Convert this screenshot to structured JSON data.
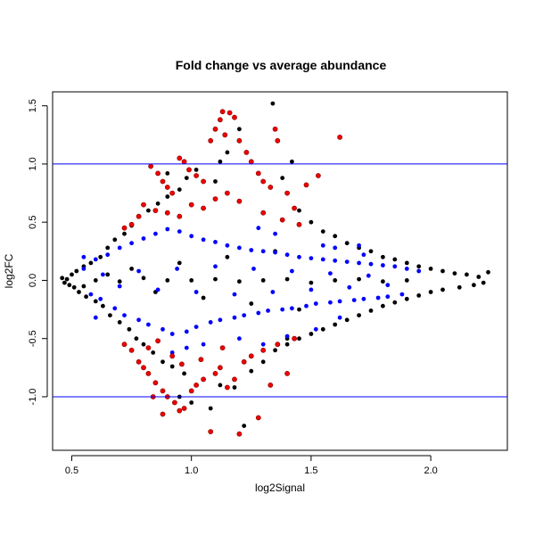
{
  "chart_data": {
    "type": "scatter",
    "title": "Fold change vs average abundance",
    "xlabel": "log2Signal",
    "ylabel": "log2FC",
    "xlim": [
      0.42,
      2.32
    ],
    "ylim": [
      -1.46,
      1.62
    ],
    "xticks": [
      {
        "value": 0.5,
        "label": "0.5"
      },
      {
        "value": 1.0,
        "label": "1.0"
      },
      {
        "value": 1.5,
        "label": "1.5"
      },
      {
        "value": 2.0,
        "label": "2.0"
      }
    ],
    "yticks": [
      {
        "value": -1.0,
        "label": "-1.0"
      },
      {
        "value": -0.5,
        "label": "-0.5"
      },
      {
        "value": 0.0,
        "label": "0.0"
      },
      {
        "value": 0.5,
        "label": "0.5"
      },
      {
        "value": 1.0,
        "label": "1.0"
      },
      {
        "value": 1.5,
        "label": "1.5"
      }
    ],
    "hlines": [
      {
        "y": 1.0,
        "color": "#0000ff"
      },
      {
        "y": -1.0,
        "color": "#0000ff"
      }
    ],
    "grid": false,
    "legend": "none",
    "colors": {
      "black": "#000000",
      "blue": "#0000ff",
      "red": "#ee0000",
      "red_outline": "#880000"
    },
    "series": [
      {
        "color": "black",
        "points": [
          [
            0.46,
            0.02
          ],
          [
            0.47,
            -0.02
          ],
          [
            0.48,
            0.01
          ],
          [
            0.49,
            -0.04
          ],
          [
            0.5,
            0.05
          ],
          [
            0.51,
            -0.06
          ],
          [
            0.52,
            0.08
          ],
          [
            0.53,
            -0.1
          ],
          [
            0.55,
            0.12
          ],
          [
            0.56,
            -0.14
          ],
          [
            0.58,
            0.15
          ],
          [
            0.6,
            -0.18
          ],
          [
            0.62,
            0.2
          ],
          [
            0.63,
            -0.22
          ],
          [
            0.65,
            0.28
          ],
          [
            0.66,
            -0.3
          ],
          [
            0.68,
            0.35
          ],
          [
            0.7,
            -0.36
          ],
          [
            0.72,
            0.4
          ],
          [
            0.74,
            -0.42
          ],
          [
            0.75,
            0.47
          ],
          [
            0.77,
            -0.5
          ],
          [
            0.78,
            0.55
          ],
          [
            0.8,
            -0.55
          ],
          [
            0.82,
            0.6
          ],
          [
            0.84,
            -0.62
          ],
          [
            0.86,
            0.66
          ],
          [
            0.88,
            -0.7
          ],
          [
            0.9,
            0.72
          ],
          [
            0.92,
            -0.74
          ],
          [
            0.95,
            0.78
          ],
          [
            0.97,
            -0.8
          ],
          [
            0.83,
            0.98
          ],
          [
            0.9,
            0.92
          ],
          [
            0.98,
            0.88
          ],
          [
            1.02,
            0.95
          ],
          [
            1.12,
            1.02
          ],
          [
            1.15,
            1.1
          ],
          [
            1.2,
            1.3
          ],
          [
            1.1,
            0.85
          ],
          [
            1.05,
            -0.85
          ],
          [
            1.12,
            -0.9
          ],
          [
            1.18,
            -0.92
          ],
          [
            1.25,
            -0.78
          ],
          [
            1.3,
            -0.7
          ],
          [
            1.22,
            -1.25
          ],
          [
            1.35,
            -0.6
          ],
          [
            1.4,
            -0.5
          ],
          [
            1.34,
            1.52
          ],
          [
            1.38,
            0.88
          ],
          [
            1.42,
            1.02
          ],
          [
            1.45,
            0.6
          ],
          [
            1.5,
            0.5
          ],
          [
            1.55,
            0.42
          ],
          [
            1.6,
            0.38
          ],
          [
            1.65,
            0.32
          ],
          [
            1.7,
            0.28
          ],
          [
            1.75,
            0.25
          ],
          [
            1.8,
            0.2
          ],
          [
            1.85,
            0.18
          ],
          [
            1.9,
            0.15
          ],
          [
            1.95,
            0.12
          ],
          [
            2.0,
            0.1
          ],
          [
            2.05,
            0.08
          ],
          [
            2.1,
            0.06
          ],
          [
            2.15,
            0.05
          ],
          [
            2.2,
            0.03
          ],
          [
            2.24,
            0.07
          ],
          [
            2.22,
            -0.02
          ],
          [
            2.18,
            -0.04
          ],
          [
            2.12,
            -0.06
          ],
          [
            2.05,
            -0.08
          ],
          [
            2.0,
            -0.1
          ],
          [
            1.95,
            -0.13
          ],
          [
            1.9,
            -0.16
          ],
          [
            1.85,
            -0.19
          ],
          [
            1.8,
            -0.22
          ],
          [
            1.75,
            -0.26
          ],
          [
            1.7,
            -0.3
          ],
          [
            1.65,
            -0.34
          ],
          [
            1.6,
            -0.38
          ],
          [
            1.55,
            -0.42
          ],
          [
            1.5,
            -0.46
          ],
          [
            1.45,
            -0.5
          ],
          [
            1.4,
            -0.55
          ],
          [
            1.0,
            -1.05
          ],
          [
            0.95,
            -1.0
          ],
          [
            1.08,
            -1.1
          ],
          [
            0.9,
            0.0
          ],
          [
            1.0,
            0.0
          ],
          [
            1.1,
            0.01
          ],
          [
            1.2,
            -0.01
          ],
          [
            1.3,
            0.0
          ],
          [
            1.4,
            0.01
          ],
          [
            0.8,
            0.02
          ],
          [
            0.7,
            -0.01
          ],
          [
            0.6,
            0.0
          ],
          [
            1.5,
            -0.02
          ],
          [
            1.6,
            0.0
          ],
          [
            1.7,
            0.01
          ],
          [
            1.8,
            -0.01
          ],
          [
            1.9,
            0.0
          ],
          [
            0.75,
            0.1
          ],
          [
            0.85,
            -0.1
          ],
          [
            0.95,
            0.15
          ],
          [
            1.05,
            -0.15
          ],
          [
            1.15,
            0.2
          ],
          [
            1.25,
            -0.2
          ],
          [
            1.35,
            0.25
          ],
          [
            1.45,
            -0.25
          ],
          [
            0.65,
            0.05
          ],
          [
            0.55,
            -0.05
          ]
        ]
      },
      {
        "color": "blue",
        "points": [
          [
            0.55,
            0.1
          ],
          [
            0.58,
            -0.12
          ],
          [
            0.6,
            0.18
          ],
          [
            0.62,
            -0.16
          ],
          [
            0.65,
            0.22
          ],
          [
            0.68,
            -0.24
          ],
          [
            0.7,
            0.28
          ],
          [
            0.72,
            -0.3
          ],
          [
            0.75,
            0.32
          ],
          [
            0.78,
            -0.34
          ],
          [
            0.8,
            0.36
          ],
          [
            0.82,
            -0.38
          ],
          [
            0.85,
            0.4
          ],
          [
            0.88,
            -0.42
          ],
          [
            0.9,
            0.44
          ],
          [
            0.92,
            -0.46
          ],
          [
            0.95,
            0.42
          ],
          [
            0.98,
            -0.44
          ],
          [
            1.0,
            0.38
          ],
          [
            1.02,
            -0.4
          ],
          [
            1.05,
            0.35
          ],
          [
            1.08,
            -0.36
          ],
          [
            1.1,
            0.33
          ],
          [
            1.12,
            -0.34
          ],
          [
            1.15,
            0.3
          ],
          [
            1.18,
            -0.32
          ],
          [
            1.2,
            0.28
          ],
          [
            1.22,
            -0.3
          ],
          [
            1.25,
            0.26
          ],
          [
            1.28,
            -0.28
          ],
          [
            1.3,
            0.25
          ],
          [
            1.32,
            -0.26
          ],
          [
            1.35,
            0.24
          ],
          [
            1.38,
            -0.25
          ],
          [
            1.4,
            0.22
          ],
          [
            1.42,
            -0.24
          ],
          [
            1.45,
            0.2
          ],
          [
            1.48,
            -0.22
          ],
          [
            1.5,
            0.19
          ],
          [
            1.52,
            -0.2
          ],
          [
            1.55,
            0.18
          ],
          [
            1.58,
            -0.19
          ],
          [
            1.6,
            0.17
          ],
          [
            1.62,
            -0.18
          ],
          [
            1.65,
            0.16
          ],
          [
            1.68,
            -0.17
          ],
          [
            1.7,
            0.15
          ],
          [
            1.72,
            -0.16
          ],
          [
            1.75,
            0.14
          ],
          [
            1.78,
            -0.15
          ],
          [
            1.8,
            0.13
          ],
          [
            1.82,
            -0.14
          ],
          [
            1.85,
            0.12
          ],
          [
            1.88,
            -0.12
          ],
          [
            1.9,
            0.1
          ],
          [
            1.95,
            0.08
          ],
          [
            0.63,
            0.05
          ],
          [
            0.7,
            -0.05
          ],
          [
            0.78,
            0.08
          ],
          [
            0.86,
            -0.08
          ],
          [
            0.94,
            0.1
          ],
          [
            1.02,
            -0.1
          ],
          [
            1.1,
            0.12
          ],
          [
            1.18,
            -0.12
          ],
          [
            1.26,
            0.1
          ],
          [
            1.34,
            -0.1
          ],
          [
            1.42,
            0.08
          ],
          [
            1.5,
            -0.08
          ],
          [
            1.58,
            0.06
          ],
          [
            1.66,
            -0.06
          ],
          [
            1.74,
            0.04
          ],
          [
            1.82,
            -0.04
          ],
          [
            1.55,
            0.3
          ],
          [
            1.6,
            0.28
          ],
          [
            1.7,
            0.3
          ],
          [
            1.35,
            0.4
          ],
          [
            1.28,
            0.45
          ],
          [
            1.4,
            -0.48
          ],
          [
            1.3,
            -0.55
          ],
          [
            1.2,
            -0.5
          ],
          [
            0.92,
            -0.62
          ],
          [
            0.98,
            -0.58
          ],
          [
            1.05,
            -0.55
          ],
          [
            0.6,
            -0.32
          ],
          [
            0.55,
            0.2
          ],
          [
            1.52,
            -0.42
          ],
          [
            1.62,
            -0.32
          ],
          [
            1.72,
            0.22
          ]
        ]
      },
      {
        "color": "red",
        "points": [
          [
            0.83,
            0.98
          ],
          [
            0.86,
            0.92
          ],
          [
            0.88,
            0.85
          ],
          [
            0.9,
            0.8
          ],
          [
            0.92,
            0.75
          ],
          [
            0.95,
            1.05
          ],
          [
            0.97,
            1.02
          ],
          [
            0.99,
            0.95
          ],
          [
            1.02,
            0.9
          ],
          [
            1.05,
            0.85
          ],
          [
            1.08,
            1.2
          ],
          [
            1.1,
            1.3
          ],
          [
            1.12,
            1.38
          ],
          [
            1.13,
            1.45
          ],
          [
            1.16,
            1.44
          ],
          [
            1.18,
            1.4
          ],
          [
            1.14,
            1.25
          ],
          [
            1.2,
            1.2
          ],
          [
            1.23,
            1.1
          ],
          [
            1.25,
            1.02
          ],
          [
            1.28,
            0.92
          ],
          [
            1.3,
            0.85
          ],
          [
            1.33,
            0.8
          ],
          [
            1.35,
            1.3
          ],
          [
            1.36,
            1.2
          ],
          [
            1.62,
            1.23
          ],
          [
            1.4,
            0.75
          ],
          [
            1.43,
            0.62
          ],
          [
            1.48,
            0.82
          ],
          [
            1.53,
            0.9
          ],
          [
            0.8,
            0.65
          ],
          [
            0.78,
            0.55
          ],
          [
            0.75,
            0.48
          ],
          [
            0.72,
            0.45
          ],
          [
            0.85,
            0.6
          ],
          [
            0.9,
            0.58
          ],
          [
            0.95,
            0.55
          ],
          [
            1.0,
            0.65
          ],
          [
            1.05,
            0.62
          ],
          [
            1.1,
            0.7
          ],
          [
            1.15,
            0.75
          ],
          [
            1.2,
            0.68
          ],
          [
            1.3,
            0.58
          ],
          [
            1.38,
            0.52
          ],
          [
            1.45,
            0.48
          ],
          [
            0.72,
            -0.55
          ],
          [
            0.75,
            -0.6
          ],
          [
            0.78,
            -0.7
          ],
          [
            0.8,
            -0.75
          ],
          [
            0.82,
            -0.8
          ],
          [
            0.85,
            -0.88
          ],
          [
            0.88,
            -0.95
          ],
          [
            0.9,
            -1.0
          ],
          [
            0.93,
            -1.05
          ],
          [
            0.95,
            -1.12
          ],
          [
            0.97,
            -1.1
          ],
          [
            1.0,
            -0.95
          ],
          [
            1.02,
            -0.9
          ],
          [
            1.05,
            -0.85
          ],
          [
            1.08,
            -1.3
          ],
          [
            1.1,
            -0.8
          ],
          [
            1.12,
            -0.75
          ],
          [
            1.15,
            -0.92
          ],
          [
            1.18,
            -0.85
          ],
          [
            1.2,
            -1.32
          ],
          [
            1.22,
            -0.7
          ],
          [
            1.25,
            -0.65
          ],
          [
            1.28,
            -1.18
          ],
          [
            1.3,
            -0.6
          ],
          [
            1.33,
            -0.9
          ],
          [
            1.36,
            -0.55
          ],
          [
            1.4,
            -0.8
          ],
          [
            1.43,
            -0.5
          ],
          [
            0.84,
            -1.0
          ],
          [
            0.88,
            -1.15
          ],
          [
            0.92,
            -0.65
          ],
          [
            0.96,
            -0.72
          ],
          [
            1.04,
            -0.68
          ],
          [
            1.13,
            -0.58
          ],
          [
            0.82,
            -0.58
          ],
          [
            0.86,
            -0.52
          ]
        ]
      }
    ]
  }
}
